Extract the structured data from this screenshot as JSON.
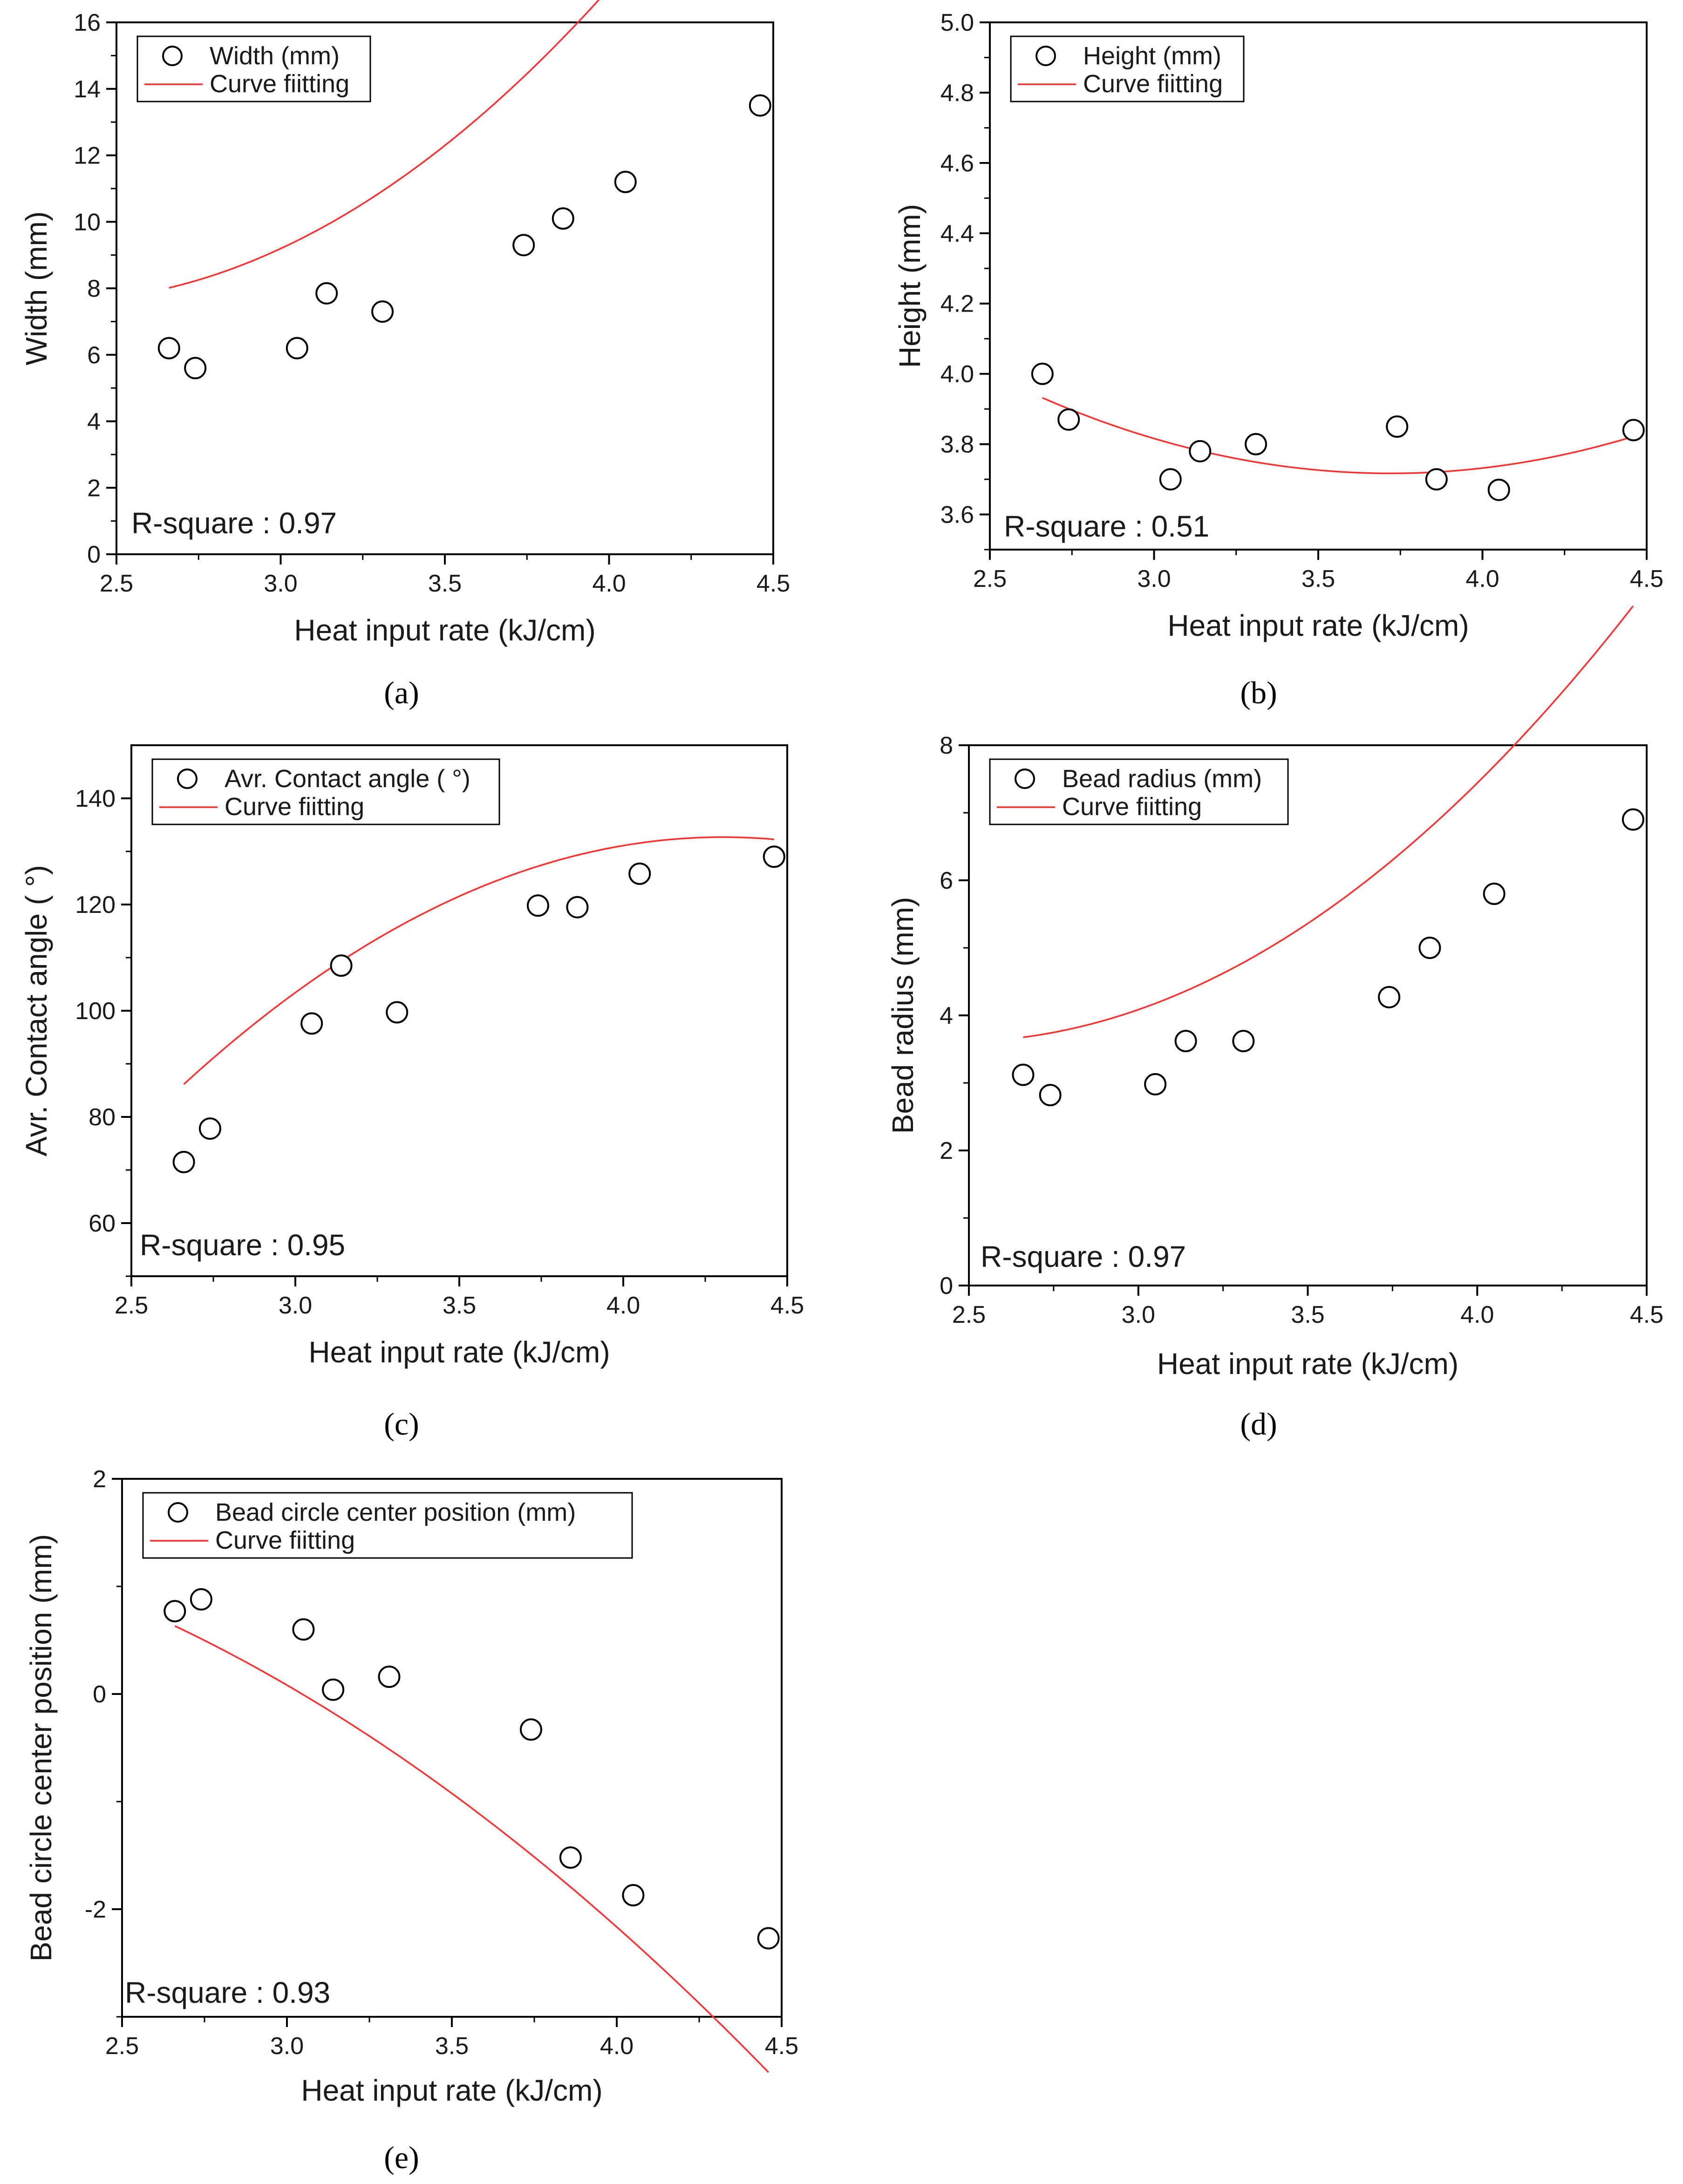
{
  "figure": {
    "accent_color": "#ff3030",
    "chart_data": [
      {
        "id": "a",
        "type": "scatter",
        "caption": "(a)",
        "xlabel": "Heat input rate (kJ/cm)",
        "ylabel": "Width (mm)",
        "xlim": [
          2.5,
          4.5
        ],
        "ylim": [
          0,
          16
        ],
        "xticks": [
          2.5,
          3.0,
          3.5,
          4.0,
          4.5
        ],
        "xtick_labels": [
          "2.5",
          "3.0",
          "3.5",
          "4.0",
          "4.5"
        ],
        "yticks": [
          0,
          2,
          4,
          6,
          8,
          10,
          12,
          14,
          16
        ],
        "ytick_labels": [
          "0",
          "2",
          "4",
          "6",
          "8",
          "10",
          "12",
          "14",
          "16"
        ],
        "legend": [
          "Width (mm)",
          "Curve fiitting"
        ],
        "annotation": "R-square : 0.97",
        "points": {
          "x": [
            2.66,
            2.74,
            3.05,
            3.14,
            3.31,
            3.74,
            3.86,
            4.05,
            4.46
          ],
          "y": [
            6.2,
            5.6,
            6.2,
            7.85,
            7.3,
            9.3,
            10.1,
            11.2,
            13.5
          ]
        },
        "fit_coeffs": [
          24.66,
          -14.89,
          3.245
        ],
        "fit_range": [
          2.66,
          4.46
        ]
      },
      {
        "id": "b",
        "type": "scatter",
        "caption": "(b)",
        "xlabel": "Heat input rate (kJ/cm)",
        "ylabel": "Height (mm)",
        "xlim": [
          2.5,
          4.5
        ],
        "ylim": [
          3.5,
          5.0
        ],
        "xticks": [
          2.5,
          3.0,
          3.5,
          4.0,
          4.5
        ],
        "xtick_labels": [
          "2.5",
          "3.0",
          "3.5",
          "4.0",
          "4.5"
        ],
        "yticks": [
          3.6,
          3.8,
          4.0,
          4.2,
          4.4,
          4.6,
          4.8,
          5.0
        ],
        "ytick_labels": [
          "3.6",
          "3.8",
          "4.0",
          "4.2",
          "4.4",
          "4.6",
          "4.8",
          "5.0"
        ],
        "legend": [
          "Height (mm)",
          "Curve fiitting"
        ],
        "annotation": "R-square : 0.51",
        "points": {
          "x": [
            2.66,
            2.74,
            3.05,
            3.14,
            3.31,
            3.74,
            3.86,
            4.05,
            4.46
          ],
          "y": [
            4.0,
            3.87,
            3.7,
            3.78,
            3.8,
            3.85,
            3.7,
            3.67,
            3.84
          ]
        },
        "fit_coeffs": [
          6.366,
          -1.4245,
          0.1915
        ],
        "fit_range": [
          2.66,
          4.46
        ]
      },
      {
        "id": "c",
        "type": "scatter",
        "caption": "(c)",
        "xlabel": "Heat input rate (kJ/cm)",
        "ylabel": "Avr. Contact angle ( °)",
        "xlim": [
          2.5,
          4.5
        ],
        "ylim": [
          50,
          150
        ],
        "xticks": [
          2.5,
          3.0,
          3.5,
          4.0,
          4.5
        ],
        "xtick_labels": [
          "2.5",
          "3.0",
          "3.5",
          "4.0",
          "4.5"
        ],
        "yticks": [
          60,
          80,
          100,
          120,
          140
        ],
        "ytick_labels": [
          "60",
          "80",
          "100",
          "120",
          "140"
        ],
        "legend": [
          "Avr. Contact angle ( °)",
          "Curve fiitting"
        ],
        "annotation": "R-square : 0.95",
        "points": {
          "x": [
            2.66,
            2.74,
            3.05,
            3.14,
            3.31,
            3.74,
            3.86,
            4.05,
            4.46
          ],
          "y": [
            71.5,
            77.8,
            97.6,
            108.5,
            99.7,
            119.8,
            119.5,
            125.8,
            129
          ]
        },
        "fit_coeffs": [
          -186.3,
          148.23,
          -17.22
        ],
        "fit_range": [
          2.66,
          4.46
        ]
      },
      {
        "id": "d",
        "type": "scatter",
        "caption": "(d)",
        "xlabel": "Heat input rate (kJ/cm)",
        "ylabel": "Bead radius (mm)",
        "xlim": [
          2.5,
          4.5
        ],
        "ylim": [
          0,
          8
        ],
        "xticks": [
          2.5,
          3.0,
          3.5,
          4.0,
          4.5
        ],
        "xtick_labels": [
          "2.5",
          "3.0",
          "3.5",
          "4.0",
          "4.5"
        ],
        "yticks": [
          0,
          2,
          4,
          6,
          8
        ],
        "ytick_labels": [
          "0",
          "2",
          "4",
          "6",
          "8"
        ],
        "legend": [
          "Bead radius (mm)",
          "Curve fiitting"
        ],
        "annotation": "R-square : 0.97",
        "points": {
          "x": [
            2.66,
            2.74,
            3.05,
            3.14,
            3.31,
            3.74,
            3.86,
            4.05,
            4.46
          ],
          "y": [
            3.12,
            2.82,
            2.98,
            3.62,
            3.62,
            4.27,
            5.0,
            5.8,
            6.9
          ]
        },
        "fit_coeffs": [
          13.28,
          -7.88,
          1.605
        ],
        "fit_range": [
          2.66,
          4.46
        ]
      },
      {
        "id": "e",
        "type": "scatter",
        "caption": "(e)",
        "xlabel": "Heat input rate (kJ/cm)",
        "ylabel": "Bead circle center position (mm)",
        "xlim": [
          2.5,
          4.5
        ],
        "ylim": [
          -3,
          2
        ],
        "xticks": [
          2.5,
          3.0,
          3.5,
          4.0,
          4.5
        ],
        "xtick_labels": [
          "2.5",
          "3.0",
          "3.5",
          "4.0",
          "4.5"
        ],
        "yticks": [
          -2,
          0,
          2
        ],
        "ytick_labels": [
          "-2",
          "0",
          "2"
        ],
        "legend": [
          "Bead circle center position (mm)",
          "Curve fiitting"
        ],
        "annotation": "R-square : 0.93",
        "points": {
          "x": [
            2.66,
            2.74,
            3.05,
            3.14,
            3.31,
            3.74,
            3.86,
            4.05,
            4.46
          ],
          "y": [
            0.77,
            0.88,
            0.6,
            0.04,
            0.16,
            -0.33,
            -1.52,
            -1.87,
            -2.27
          ]
        },
        "fit_coeffs": [
          1.18,
          1.046,
          -0.4706
        ],
        "fit_range": [
          2.66,
          4.46
        ]
      }
    ]
  }
}
